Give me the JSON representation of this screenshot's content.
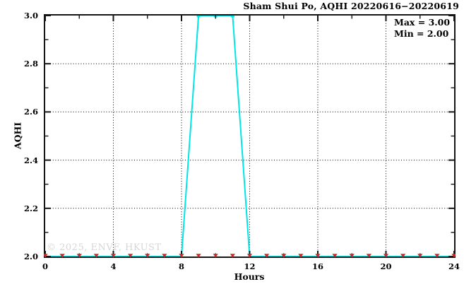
{
  "title": "Sham Shui Po, AQHI 20220616−20220619",
  "legend": {
    "max_label": "Max = 3.00",
    "min_label": "Min = 2.00"
  },
  "watermark": "© 2025, ENVF, HKUST",
  "colors": {
    "max_line": "#00e6e6",
    "max_marker": "#00e6e6",
    "min_marker": "#d22626",
    "axis": "#151515",
    "grid": "#000000",
    "watermark": "#d6d6d6",
    "background": "#ffffff"
  },
  "chart_data": {
    "type": "line",
    "title": "Sham Shui Po, AQHI 20220616−20220619",
    "xlabel": "Hours",
    "ylabel": "AQHI",
    "xlim": [
      0,
      24
    ],
    "ylim": [
      2.0,
      3.0
    ],
    "grid": "dotted lines at major ticks, both axes",
    "legend_position": "top-right inside plot",
    "x_major_ticks": [
      0,
      4,
      8,
      12,
      16,
      20,
      24
    ],
    "x_minor_ticks": [
      2,
      6,
      10,
      14,
      18,
      22
    ],
    "x_tick_labels": [
      "0",
      "4",
      "8",
      "12",
      "16",
      "20",
      "24"
    ],
    "y_major_ticks": [
      2.0,
      2.2,
      2.4,
      2.6,
      2.8,
      3.0
    ],
    "y_minor_ticks": [
      2.1,
      2.3,
      2.5,
      2.7,
      2.9
    ],
    "y_tick_labels": [
      "2.0",
      "2.2",
      "2.4",
      "2.6",
      "2.8",
      "3.0"
    ],
    "x": [
      0,
      1,
      2,
      3,
      4,
      5,
      6,
      7,
      8,
      9,
      10,
      11,
      12,
      13,
      14,
      15,
      16,
      17,
      18,
      19,
      20,
      21,
      22,
      23,
      24
    ],
    "series": [
      {
        "name": "max",
        "style": "line-with-square-markers",
        "color": "#00e6e6",
        "values": [
          2,
          2,
          2,
          2,
          2,
          2,
          2,
          2,
          2,
          3,
          3,
          3,
          2,
          2,
          2,
          2,
          2,
          2,
          2,
          2,
          2,
          2,
          2,
          2,
          2
        ]
      },
      {
        "name": "min",
        "style": "triangle-down-markers",
        "color": "#d22626",
        "values": [
          2,
          2,
          2,
          2,
          2,
          2,
          2,
          2,
          2,
          2,
          2,
          2,
          2,
          2,
          2,
          2,
          2,
          2,
          2,
          2,
          2,
          2,
          2,
          2,
          2
        ]
      }
    ],
    "stats": {
      "max": "3.00",
      "min": "2.00"
    }
  }
}
